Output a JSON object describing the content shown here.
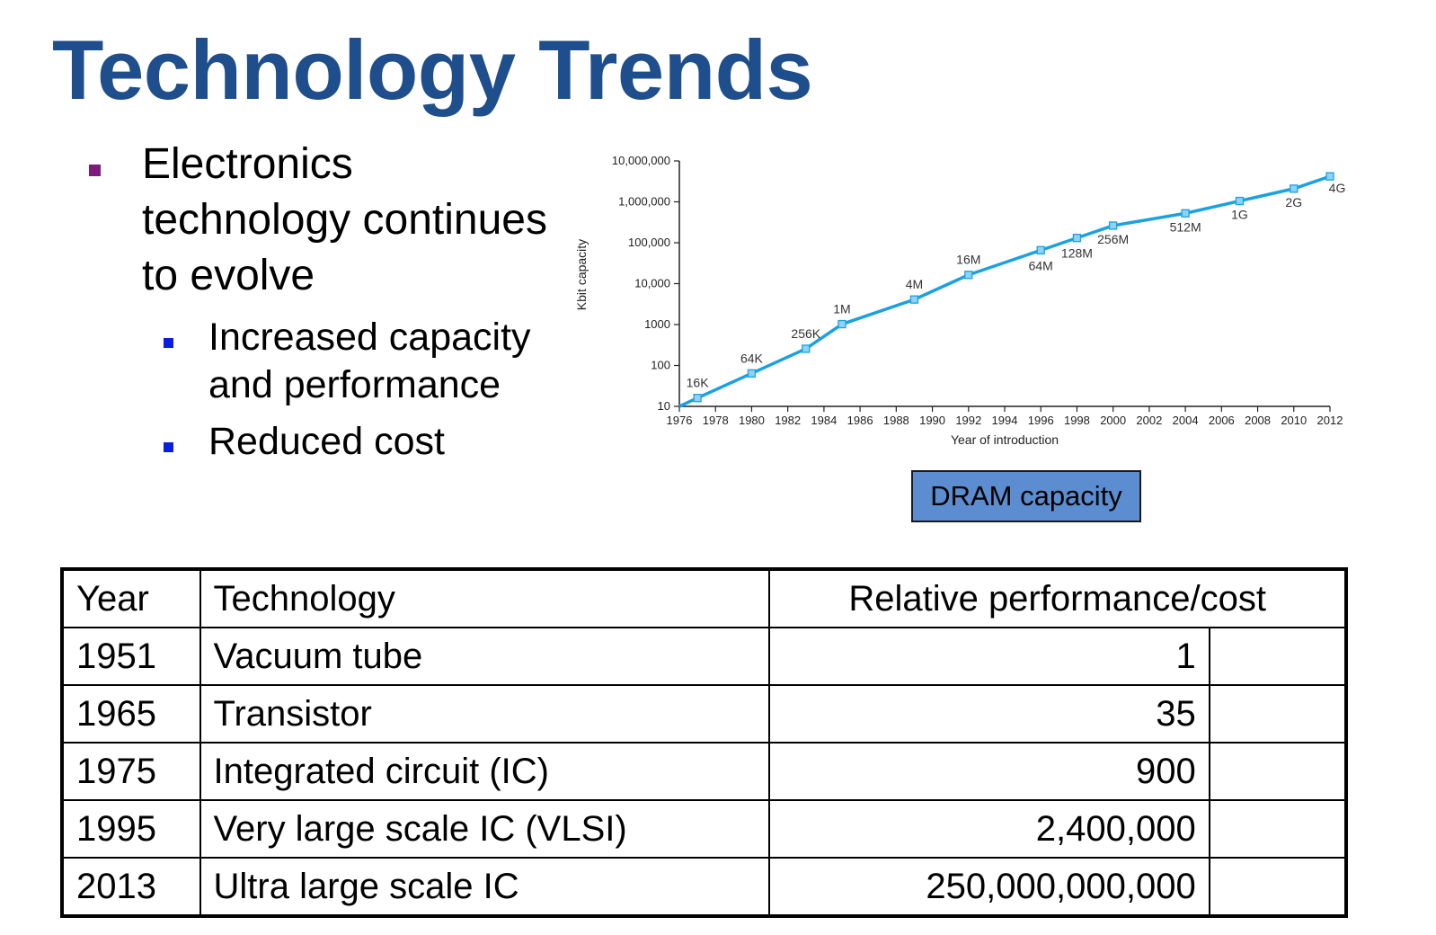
{
  "slide": {
    "title": "Technology Trends",
    "bullet_main": "Electronics technology continues to evolve",
    "sub_bullets": [
      "Increased capacity and performance",
      "Reduced cost"
    ],
    "caption": "DRAM capacity",
    "colors": {
      "title": "#1f4e8c",
      "main_marker": "#7b1b7e",
      "sub_marker": "#0a1ee0",
      "caption_bg": "#5b8dd0",
      "line": "#1ba1e2"
    }
  },
  "chart_data": {
    "type": "line",
    "scale": "log",
    "xlabel": "Year of introduction",
    "ylabel": "Kbit capacity",
    "xlim": [
      1976,
      2012
    ],
    "ylim": [
      10,
      10000000
    ],
    "x_ticks": [
      "1976",
      "1978",
      "1980",
      "1982",
      "1984",
      "1986",
      "1988",
      "1990",
      "1992",
      "1994",
      "1996",
      "1998",
      "2000",
      "2002",
      "2004",
      "2006",
      "2008",
      "2010",
      "2012"
    ],
    "y_ticks": [
      {
        "value": 10,
        "label": "10"
      },
      {
        "value": 100,
        "label": "100"
      },
      {
        "value": 1000,
        "label": "1000"
      },
      {
        "value": 10000,
        "label": "10,000"
      },
      {
        "value": 100000,
        "label": "100,000"
      },
      {
        "value": 1000000,
        "label": "1,000,000"
      },
      {
        "value": 10000000,
        "label": "10,000,000"
      }
    ],
    "points": [
      {
        "x": 1977,
        "y": 16,
        "label": "16K"
      },
      {
        "x": 1980,
        "y": 64,
        "label": "64K"
      },
      {
        "x": 1983,
        "y": 256,
        "label": "256K"
      },
      {
        "x": 1985,
        "y": 1024,
        "label": "1M"
      },
      {
        "x": 1989,
        "y": 4096,
        "label": "4M"
      },
      {
        "x": 1992,
        "y": 16384,
        "label": "16M"
      },
      {
        "x": 1996,
        "y": 65536,
        "label": "64M"
      },
      {
        "x": 1998,
        "y": 131072,
        "label": "128M"
      },
      {
        "x": 2000,
        "y": 262144,
        "label": "256M"
      },
      {
        "x": 2004,
        "y": 524288,
        "label": "512M"
      },
      {
        "x": 2007,
        "y": 1048576,
        "label": "1G"
      },
      {
        "x": 2010,
        "y": 2097152,
        "label": "2G"
      },
      {
        "x": 2012,
        "y": 4194304,
        "label": "4G"
      }
    ]
  },
  "table": {
    "headers": [
      "Year",
      "Technology",
      "Relative performance/cost"
    ],
    "rows": [
      [
        "1951",
        "Vacuum tube",
        "1"
      ],
      [
        "1965",
        "Transistor",
        "35"
      ],
      [
        "1975",
        "Integrated circuit (IC)",
        "900"
      ],
      [
        "1995",
        "Very large scale IC (VLSI)",
        "2,400,000"
      ],
      [
        "2013",
        "Ultra large scale IC",
        "250,000,000,000"
      ]
    ]
  }
}
